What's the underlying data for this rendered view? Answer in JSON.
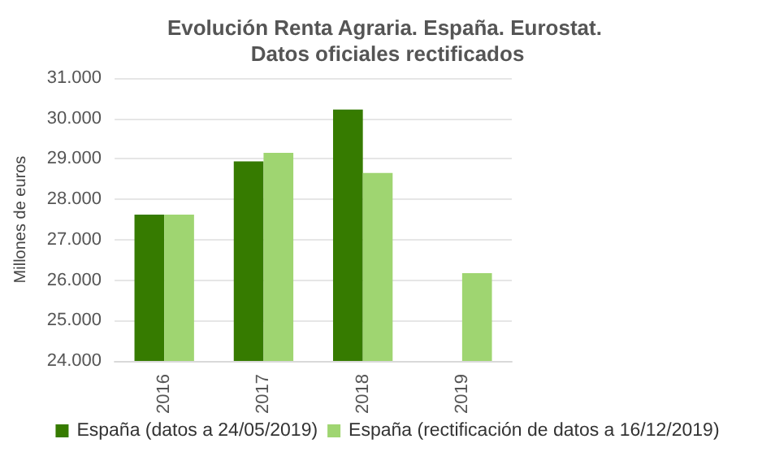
{
  "chart_data": {
    "type": "bar",
    "title": "Evolución Renta Agraria. España. Eurostat. Datos oficiales rectificados",
    "ylabel": "Millones de euros",
    "categories": [
      "2016",
      "2017",
      "2018",
      "2019"
    ],
    "series": [
      {
        "name": "España (datos a 24/05/2019)",
        "color": "#367b00",
        "values": [
          27620,
          28940,
          30220,
          null
        ]
      },
      {
        "name": "España (rectificación de datos a 16/12/2019)",
        "color": "#9fd571",
        "values": [
          27620,
          29150,
          28650,
          26170
        ]
      }
    ],
    "ylim": [
      24000,
      31000
    ],
    "yticks": [
      {
        "value": 24000,
        "label": "24.000"
      },
      {
        "value": 25000,
        "label": "25.000"
      },
      {
        "value": 26000,
        "label": "26.000"
      },
      {
        "value": 27000,
        "label": "27.000"
      },
      {
        "value": 28000,
        "label": "28.000"
      },
      {
        "value": 29000,
        "label": "29.000"
      },
      {
        "value": 30000,
        "label": "30.000"
      },
      {
        "value": 31000,
        "label": "31.000"
      }
    ],
    "grid": "y",
    "legend": "bottom"
  }
}
